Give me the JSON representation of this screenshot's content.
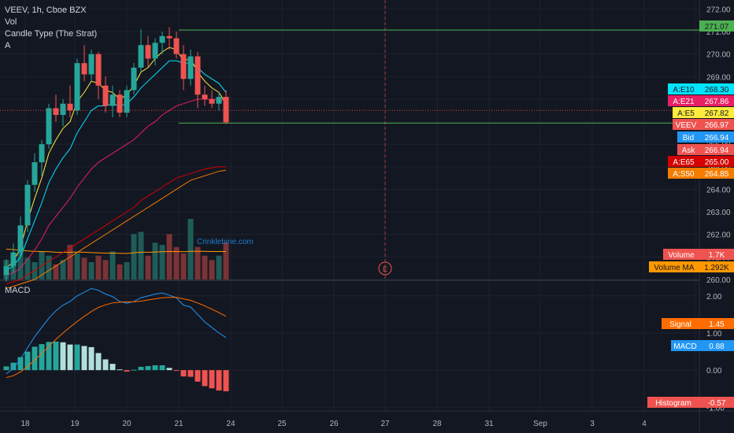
{
  "legend": {
    "symbol_line": "VEEV, 1h, Cboe BZX",
    "vol": "Vol",
    "candle_type": "Candle Type (The Strat)",
    "a": "A"
  },
  "macd_title": "MACD",
  "watermark": "Crinklebine.com",
  "event_marker": "E",
  "price_axis": {
    "ticks": [
      "272.00",
      "271.00",
      "270.00",
      "269.00",
      "268.00",
      "267.00",
      "266.00",
      "265.00",
      "264.00",
      "263.00",
      "262.00",
      "261.00",
      "260.00"
    ]
  },
  "macd_axis": {
    "ticks": [
      "2.00",
      "1.00",
      "0.00",
      "-1.00"
    ]
  },
  "time_axis": {
    "labels": [
      "18",
      "19",
      "20",
      "21",
      "24",
      "25",
      "26",
      "27",
      "28",
      "31",
      "Sep",
      "3",
      "4"
    ]
  },
  "price_labels": [
    {
      "name": "",
      "value": "271.07",
      "bg": "#4caf50",
      "fg": "#131722"
    },
    {
      "name": "A:E10",
      "value": "268.30",
      "bg": "#00e5ff",
      "fg": "#131722"
    },
    {
      "name": "A:E21",
      "value": "267.86",
      "bg": "#e91e63",
      "fg": "#ffffff"
    },
    {
      "name": "A:E5",
      "value": "267.82",
      "bg": "#ffeb3b",
      "fg": "#131722"
    },
    {
      "name": "VEEV",
      "value": "266.97",
      "bg": "#ef5350",
      "fg": "#ffffff"
    },
    {
      "name": "Bid",
      "value": "266.94",
      "bg": "#2196f3",
      "fg": "#ffffff"
    },
    {
      "name": "Ask",
      "value": "266.94",
      "bg": "#ef5350",
      "fg": "#ffffff"
    },
    {
      "name": "A:E65",
      "value": "265.00",
      "bg": "#d50000",
      "fg": "#ffffff"
    },
    {
      "name": "A:S50",
      "value": "264.85",
      "bg": "#f57c00",
      "fg": "#ffffff"
    },
    {
      "name": "Volume",
      "value": "1.7K",
      "bg": "#ef5350",
      "fg": "#ffffff"
    },
    {
      "name": "Volume MA",
      "value": "1.292K",
      "bg": "#ff9800",
      "fg": "#131722"
    }
  ],
  "macd_labels": [
    {
      "name": "Signal",
      "value": "1.45",
      "bg": "#ff6d00",
      "fg": "#ffffff"
    },
    {
      "name": "MACD",
      "value": "0.88",
      "bg": "#2196f3",
      "fg": "#ffffff"
    },
    {
      "name": "Histogram",
      "value": "-0.57",
      "bg": "#ef5350",
      "fg": "#ffffff"
    }
  ],
  "colors": {
    "background": "#131722",
    "up": "#26a69a",
    "down": "#ef5350",
    "grid": "#1e222d",
    "text": "#b2b5be",
    "ema5": "#ffeb3b",
    "ema10": "#00e5ff",
    "ema21": "#e91e63",
    "ema65": "#d50000",
    "sma50": "#f57c00",
    "macd": "#2196f3",
    "signal": "#ff6d00"
  },
  "chart_data": {
    "type": "candlestick",
    "ylim": [
      260.0,
      272.4
    ],
    "horizontal_levels": [
      271.07,
      266.94
    ],
    "last_price": 266.97,
    "candles": [
      {
        "o": 260.2,
        "h": 260.9,
        "l": 259.9,
        "c": 260.6
      },
      {
        "o": 260.6,
        "h": 261.6,
        "l": 260.3,
        "c": 261.2
      },
      {
        "o": 261.2,
        "h": 262.8,
        "l": 261.0,
        "c": 262.4
      },
      {
        "o": 262.4,
        "h": 264.4,
        "l": 262.1,
        "c": 264.2
      },
      {
        "o": 264.2,
        "h": 265.6,
        "l": 263.9,
        "c": 265.2
      },
      {
        "o": 265.2,
        "h": 266.2,
        "l": 264.6,
        "c": 266.0
      },
      {
        "o": 266.0,
        "h": 267.8,
        "l": 265.8,
        "c": 267.6
      },
      {
        "o": 267.6,
        "h": 268.2,
        "l": 267.0,
        "c": 267.3
      },
      {
        "o": 267.3,
        "h": 268.0,
        "l": 266.8,
        "c": 267.8
      },
      {
        "o": 267.8,
        "h": 268.6,
        "l": 267.2,
        "c": 267.5
      },
      {
        "o": 267.5,
        "h": 269.8,
        "l": 267.3,
        "c": 269.6
      },
      {
        "o": 269.6,
        "h": 270.4,
        "l": 268.8,
        "c": 269.1
      },
      {
        "o": 269.1,
        "h": 270.2,
        "l": 268.8,
        "c": 270.0
      },
      {
        "o": 270.0,
        "h": 270.1,
        "l": 268.0,
        "c": 268.6
      },
      {
        "o": 268.6,
        "h": 269.0,
        "l": 267.4,
        "c": 267.7
      },
      {
        "o": 267.7,
        "h": 268.6,
        "l": 267.2,
        "c": 268.2
      },
      {
        "o": 268.2,
        "h": 268.4,
        "l": 267.2,
        "c": 267.4
      },
      {
        "o": 267.4,
        "h": 268.6,
        "l": 267.2,
        "c": 268.4
      },
      {
        "o": 268.4,
        "h": 269.6,
        "l": 268.2,
        "c": 269.4
      },
      {
        "o": 269.4,
        "h": 271.1,
        "l": 269.2,
        "c": 270.4
      },
      {
        "o": 270.4,
        "h": 270.8,
        "l": 269.4,
        "c": 269.8
      },
      {
        "o": 269.8,
        "h": 270.7,
        "l": 269.5,
        "c": 270.5
      },
      {
        "o": 270.5,
        "h": 271.0,
        "l": 270.0,
        "c": 270.8
      },
      {
        "o": 270.8,
        "h": 271.2,
        "l": 270.2,
        "c": 270.7
      },
      {
        "o": 270.7,
        "h": 271.0,
        "l": 269.8,
        "c": 270.0
      },
      {
        "o": 270.0,
        "h": 270.4,
        "l": 268.4,
        "c": 268.9
      },
      {
        "o": 268.9,
        "h": 270.2,
        "l": 268.6,
        "c": 269.9
      },
      {
        "o": 269.9,
        "h": 270.1,
        "l": 267.6,
        "c": 268.2
      },
      {
        "o": 268.2,
        "h": 268.6,
        "l": 267.7,
        "c": 268.0
      },
      {
        "o": 268.0,
        "h": 268.4,
        "l": 267.6,
        "c": 267.8
      },
      {
        "o": 267.8,
        "h": 268.3,
        "l": 267.5,
        "c": 268.1
      },
      {
        "o": 268.1,
        "h": 268.4,
        "l": 266.9,
        "c": 266.97
      }
    ],
    "volume": [
      900,
      1100,
      1500,
      1000,
      800,
      1300,
      1100,
      700,
      900,
      1600,
      1200,
      1000,
      800,
      1100,
      900,
      1300,
      700,
      800,
      2100,
      2200,
      1100,
      1700,
      1600,
      2100,
      1500,
      1200,
      2800,
      1500,
      1100,
      900,
      1100,
      1700
    ],
    "ema5": [
      260.5,
      260.8,
      261.4,
      262.6,
      263.6,
      264.5,
      265.6,
      266.2,
      266.7,
      267.0,
      267.9,
      268.3,
      268.8,
      268.7,
      268.4,
      268.3,
      268.0,
      268.2,
      268.6,
      269.2,
      269.4,
      269.8,
      270.1,
      270.3,
      270.2,
      269.7,
      269.8,
      269.2,
      268.8,
      268.5,
      268.3,
      267.8
    ],
    "ema10": [
      260.4,
      260.6,
      261.0,
      261.8,
      262.6,
      263.4,
      264.3,
      264.9,
      265.4,
      265.8,
      266.5,
      267.0,
      267.5,
      267.7,
      267.7,
      267.8,
      267.7,
      267.8,
      268.1,
      268.5,
      268.8,
      269.1,
      269.4,
      269.7,
      269.7,
      269.6,
      269.6,
      269.4,
      269.1,
      268.9,
      268.7,
      268.3
    ],
    "ema21": [
      260.2,
      260.3,
      260.5,
      260.9,
      261.3,
      261.8,
      262.4,
      262.8,
      263.2,
      263.6,
      264.1,
      264.5,
      264.9,
      265.2,
      265.4,
      265.6,
      265.8,
      266.0,
      266.2,
      266.5,
      266.8,
      267.0,
      267.3,
      267.5,
      267.7,
      267.8,
      267.9,
      268.0,
      268.0,
      268.0,
      268.0,
      267.9
    ],
    "ema65": [
      259.8,
      259.9,
      260.0,
      260.2,
      260.4,
      260.6,
      260.8,
      261.0,
      261.2,
      261.4,
      261.6,
      261.8,
      262.0,
      262.2,
      262.4,
      262.6,
      262.8,
      263.0,
      263.2,
      263.5,
      263.7,
      263.9,
      264.1,
      264.3,
      264.5,
      264.6,
      264.7,
      264.8,
      264.9,
      264.95,
      265.0,
      265.0
    ],
    "sma50": [
      259.6,
      259.7,
      259.8,
      259.9,
      260.0,
      260.2,
      260.4,
      260.6,
      260.8,
      261.0,
      261.2,
      261.4,
      261.6,
      261.8,
      262.0,
      262.2,
      262.4,
      262.6,
      262.8,
      263.0,
      263.2,
      263.4,
      263.6,
      263.8,
      264.0,
      264.2,
      264.4,
      264.5,
      264.6,
      264.7,
      264.8,
      264.85
    ],
    "volume_ma": [
      1400,
      1380,
      1350,
      1320,
      1300,
      1290,
      1280,
      1260,
      1250,
      1260,
      1270,
      1260,
      1240,
      1230,
      1220,
      1220,
      1210,
      1200,
      1230,
      1260,
      1260,
      1270,
      1280,
      1290,
      1290,
      1280,
      1300,
      1300,
      1300,
      1290,
      1290,
      1292
    ],
    "macd": {
      "ylim": [
        -1.1,
        2.4
      ],
      "macd": [
        -0.1,
        0.05,
        0.3,
        0.6,
        0.9,
        1.15,
        1.4,
        1.6,
        1.75,
        1.85,
        2.0,
        2.1,
        2.2,
        2.15,
        2.05,
        1.98,
        1.85,
        1.8,
        1.85,
        1.95,
        2.0,
        2.05,
        2.08,
        2.02,
        1.95,
        1.75,
        1.7,
        1.5,
        1.3,
        1.15,
        1.0,
        0.88
      ],
      "signal": [
        -0.2,
        -0.15,
        -0.05,
        0.1,
        0.27,
        0.45,
        0.64,
        0.83,
        1.0,
        1.16,
        1.31,
        1.45,
        1.58,
        1.69,
        1.76,
        1.81,
        1.83,
        1.84,
        1.84,
        1.86,
        1.89,
        1.92,
        1.95,
        1.96,
        1.96,
        1.92,
        1.88,
        1.81,
        1.73,
        1.64,
        1.55,
        1.45
      ],
      "histogram": [
        0.1,
        0.2,
        0.35,
        0.5,
        0.63,
        0.7,
        0.76,
        0.77,
        0.75,
        0.69,
        0.69,
        0.65,
        0.62,
        0.46,
        0.29,
        0.17,
        0.02,
        -0.04,
        0.01,
        0.09,
        0.11,
        0.13,
        0.13,
        0.06,
        -0.01,
        -0.17,
        -0.18,
        -0.31,
        -0.43,
        -0.49,
        -0.55,
        -0.57
      ]
    }
  }
}
